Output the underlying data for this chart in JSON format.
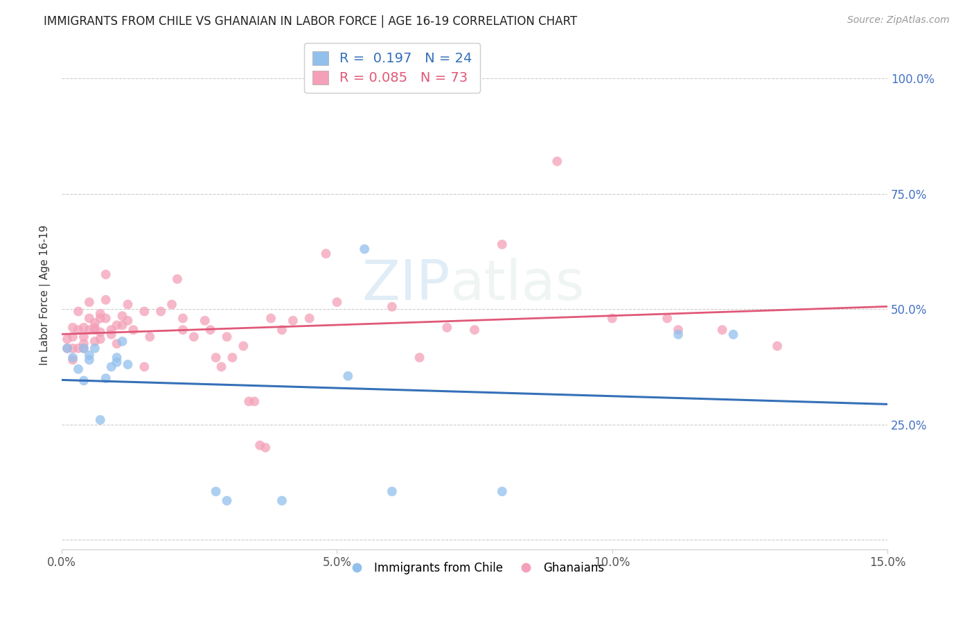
{
  "title": "IMMIGRANTS FROM CHILE VS GHANAIAN IN LABOR FORCE | AGE 16-19 CORRELATION CHART",
  "source": "Source: ZipAtlas.com",
  "ylabel": "In Labor Force | Age 16-19",
  "xlim": [
    0.0,
    0.15
  ],
  "ylim": [
    -0.02,
    1.08
  ],
  "xticks": [
    0.0,
    0.05,
    0.1,
    0.15
  ],
  "xtick_labels": [
    "0.0%",
    "5.0%",
    "10.0%",
    "15.0%"
  ],
  "yticks": [
    0.0,
    0.25,
    0.5,
    0.75,
    1.0
  ],
  "ytick_labels": [
    "",
    "25.0%",
    "50.0%",
    "75.0%",
    "100.0%"
  ],
  "chile_R": 0.197,
  "chile_N": 24,
  "ghana_R": 0.085,
  "ghana_N": 73,
  "chile_color": "#92C0ED",
  "ghana_color": "#F4A0B8",
  "chile_line_color": "#3570B8",
  "ghana_line_color": "#E05878",
  "watermark_zip": "ZIP",
  "watermark_atlas": "atlas",
  "chile_x": [
    0.001,
    0.002,
    0.003,
    0.004,
    0.004,
    0.005,
    0.005,
    0.006,
    0.007,
    0.008,
    0.009,
    0.01,
    0.01,
    0.011,
    0.012,
    0.028,
    0.03,
    0.04,
    0.052,
    0.055,
    0.06,
    0.08,
    0.112,
    0.122
  ],
  "chile_y": [
    0.415,
    0.395,
    0.37,
    0.415,
    0.345,
    0.4,
    0.39,
    0.415,
    0.26,
    0.35,
    0.375,
    0.385,
    0.395,
    0.43,
    0.38,
    0.105,
    0.085,
    0.085,
    0.355,
    0.63,
    0.105,
    0.105,
    0.445,
    0.445
  ],
  "ghana_x": [
    0.001,
    0.001,
    0.002,
    0.002,
    0.002,
    0.002,
    0.003,
    0.003,
    0.003,
    0.004,
    0.004,
    0.004,
    0.004,
    0.005,
    0.005,
    0.005,
    0.006,
    0.006,
    0.006,
    0.006,
    0.007,
    0.007,
    0.007,
    0.007,
    0.008,
    0.008,
    0.008,
    0.009,
    0.009,
    0.01,
    0.01,
    0.011,
    0.011,
    0.012,
    0.012,
    0.013,
    0.015,
    0.015,
    0.016,
    0.018,
    0.02,
    0.021,
    0.022,
    0.022,
    0.024,
    0.026,
    0.027,
    0.028,
    0.029,
    0.03,
    0.031,
    0.033,
    0.034,
    0.035,
    0.036,
    0.037,
    0.038,
    0.04,
    0.042,
    0.045,
    0.048,
    0.05,
    0.06,
    0.065,
    0.07,
    0.075,
    0.08,
    0.09,
    0.1,
    0.11,
    0.112,
    0.12,
    0.13
  ],
  "ghana_y": [
    0.415,
    0.435,
    0.44,
    0.46,
    0.415,
    0.39,
    0.495,
    0.455,
    0.415,
    0.46,
    0.44,
    0.425,
    0.415,
    0.515,
    0.48,
    0.455,
    0.47,
    0.46,
    0.455,
    0.43,
    0.49,
    0.48,
    0.45,
    0.435,
    0.575,
    0.52,
    0.48,
    0.455,
    0.445,
    0.465,
    0.425,
    0.485,
    0.465,
    0.51,
    0.475,
    0.455,
    0.495,
    0.375,
    0.44,
    0.495,
    0.51,
    0.565,
    0.48,
    0.455,
    0.44,
    0.475,
    0.455,
    0.395,
    0.375,
    0.44,
    0.395,
    0.42,
    0.3,
    0.3,
    0.205,
    0.2,
    0.48,
    0.455,
    0.475,
    0.48,
    0.62,
    0.515,
    0.505,
    0.395,
    0.46,
    0.455,
    0.64,
    0.82,
    0.48,
    0.48,
    0.455,
    0.455,
    0.42
  ]
}
